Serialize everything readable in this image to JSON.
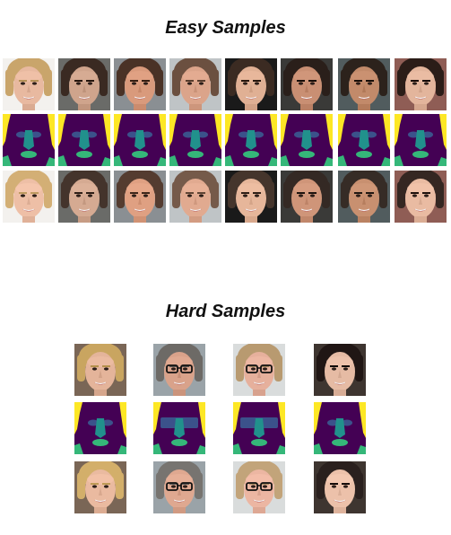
{
  "figure": {
    "easy_title": "Easy Samples",
    "hard_title": "Hard Samples"
  },
  "palette": {
    "mask_background": "#440154",
    "mask_face": "#21918c",
    "mask_mouth": "#35b779",
    "mask_hair": "#fde725",
    "mask_glasses": "#3b528b",
    "white": "#ffffff"
  },
  "easy_samples": {
    "rows": [
      "original",
      "segmentation",
      "swapped"
    ],
    "faces": [
      {
        "skin": "#e8b9a0",
        "hair": "#c9a56b",
        "bg": "#f3f1ee",
        "glasses": false
      },
      {
        "skin": "#cfa48c",
        "hair": "#3a2a22",
        "bg": "#6a6b68",
        "glasses": false
      },
      {
        "skin": "#d99a7c",
        "hair": "#4a3226",
        "bg": "#8a8f93",
        "glasses": false
      },
      {
        "skin": "#dba48a",
        "hair": "#6b5040",
        "bg": "#bfc4c6",
        "glasses": false
      },
      {
        "skin": "#e0b094",
        "hair": "#3b2b22",
        "bg": "#1a1a1a",
        "glasses": false
      },
      {
        "skin": "#c98f73",
        "hair": "#2a1f1a",
        "bg": "#3a3a38",
        "glasses": false
      },
      {
        "skin": "#c28a6a",
        "hair": "#2c221c",
        "bg": "#515c5e",
        "glasses": false
      },
      {
        "skin": "#e3b59c",
        "hair": "#2b1d18",
        "bg": "#8f5d55",
        "glasses": false
      }
    ]
  },
  "hard_samples": {
    "rows": [
      "original",
      "segmentation",
      "swapped"
    ],
    "faces": [
      {
        "skin": "#e4b49a",
        "hair": "#c9a560",
        "bg": "#7a6656",
        "glasses": false
      },
      {
        "skin": "#d9a28a",
        "hair": "#6d6a66",
        "bg": "#9aa3a8",
        "glasses": true
      },
      {
        "skin": "#e6b09c",
        "hair": "#b89a70",
        "bg": "#d9dcdc",
        "glasses": true
      },
      {
        "skin": "#e6bba4",
        "hair": "#201614",
        "bg": "#3e3530",
        "glasses": false
      }
    ]
  }
}
